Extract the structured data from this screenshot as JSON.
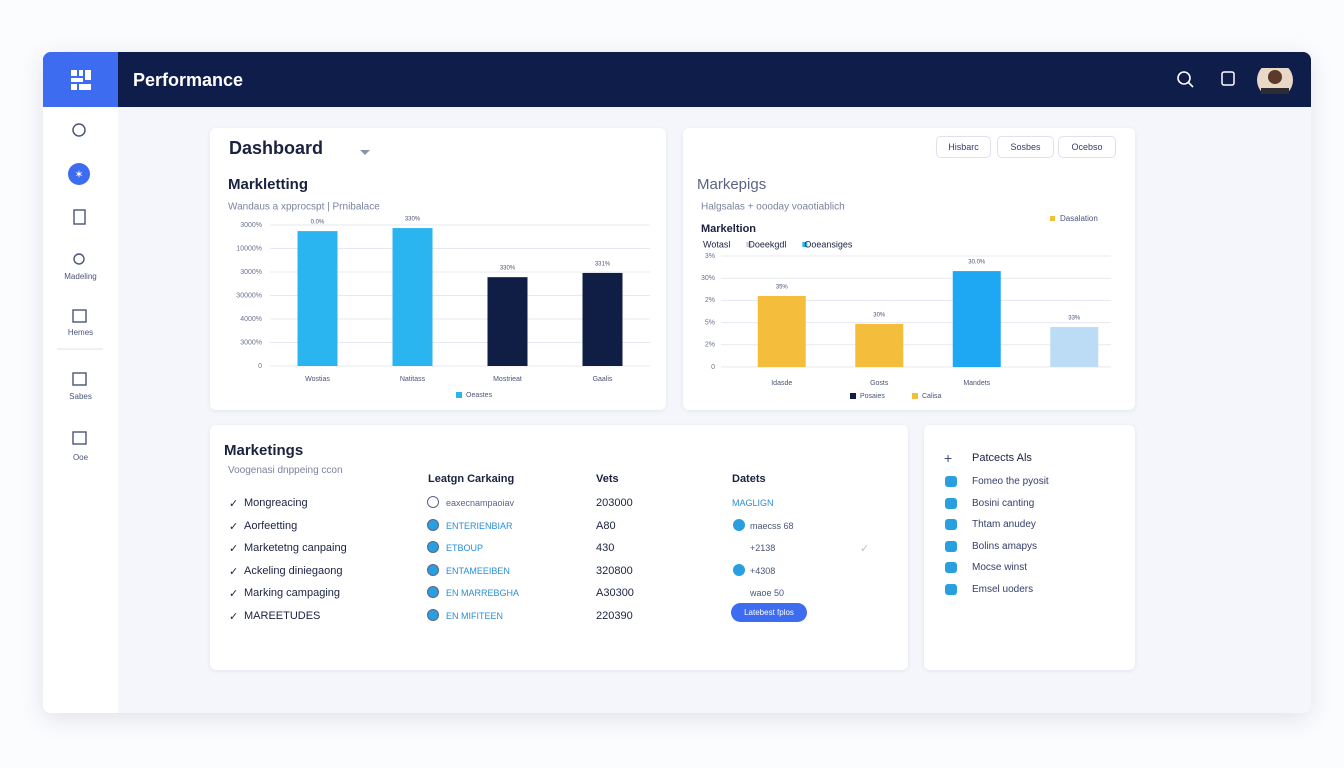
{
  "header": {
    "title": "Performance"
  },
  "sidebar": {
    "items": [
      "Madeling",
      "Hemes",
      "Sabes",
      "Ooe"
    ]
  },
  "dashboard": {
    "title": "Dashboard",
    "buttons": [
      "Hisbarc",
      "Sosbes",
      "Ocebso"
    ]
  },
  "chart_data": [
    {
      "type": "bar",
      "title": "Markletting",
      "subtitle": "Wandaus a xpprocspt | Prnibalace",
      "categories": [
        "Wostias",
        "Natitass",
        "Mostrieat",
        "Gaalis"
      ],
      "values": [
        5.74,
        5.87,
        3.78,
        3.96
      ],
      "bar_labels": [
        "0.0%",
        "330%",
        "330%",
        "331%"
      ],
      "colors": [
        "#2bb5f0",
        "#2bb5f0",
        "#101d45",
        "#101d45"
      ],
      "ylim": [
        0,
        6
      ],
      "yticks": [
        {
          "value": 0,
          "label": "0"
        },
        {
          "value": 1,
          "label": "3000%"
        },
        {
          "value": 2,
          "label": "4000%"
        },
        {
          "value": 3,
          "label": "30000%"
        },
        {
          "value": 4,
          "label": "3000%"
        },
        {
          "value": 5,
          "label": "10000%"
        },
        {
          "value": 6,
          "label": "3000%"
        }
      ],
      "grid": true,
      "legend": [
        {
          "name": "Oeastes",
          "color": "#2bb5f0"
        }
      ]
    },
    {
      "type": "bar",
      "title": "Markepigs",
      "subtitle": "Halgsalas + oooday voaotiablich",
      "inner_title": "Markeltion",
      "top_legend": [
        {
          "name": "Dasalation",
          "color": "#f5bd3c"
        }
      ],
      "sub_legend": [
        {
          "name": "Wotasl",
          "color": "#ffffff"
        },
        {
          "name": "Doeekgdl",
          "color": "#c8cdd8"
        },
        {
          "name": "Ooeansiges",
          "color": "#2bb5f0"
        }
      ],
      "categories": [
        "Idasde",
        "Gosts",
        "Mandets",
        null
      ],
      "values": [
        3.2,
        1.94,
        4.32,
        1.8
      ],
      "bar_labels": [
        "35%",
        "30%",
        "30.0%",
        "33%"
      ],
      "colors": [
        "#f5bd3c",
        "#f5bd3c",
        "#1ea7f2",
        "#bcdcf6"
      ],
      "ylim": [
        0,
        5
      ],
      "yticks": [
        {
          "value": 0,
          "label": "0"
        },
        {
          "value": 1,
          "label": "2%"
        },
        {
          "value": 2,
          "label": "5%"
        },
        {
          "value": 3,
          "label": "2%"
        },
        {
          "value": 4,
          "label": "30%"
        },
        {
          "value": 5,
          "label": "3%"
        }
      ],
      "grid": true,
      "legend": [
        {
          "name": "Posaies",
          "color": "#101d45"
        },
        {
          "name": "Calisa",
          "color": "#f5bd3c"
        }
      ]
    }
  ],
  "table": {
    "title": "Marketings",
    "subtitle": "Voogenasi dnppeing ccon",
    "columns": [
      "Leatgn Carkaing",
      "Vets",
      "Datets"
    ],
    "rows": [
      [
        "Mongreacing",
        "eaxecnampaoiav",
        "203000",
        "MAGLIGN"
      ],
      [
        "Aorfeetting",
        "ENTERIENBIAR",
        "A80",
        "maecss 68"
      ],
      [
        "Marketetng canpaing",
        "ETBOUP",
        "430",
        "+2138"
      ],
      [
        "Ackeling diniegaong",
        "ENTAMEEIBEN",
        "320800",
        "+4308"
      ],
      [
        "Marking campaging",
        "EN MARREBGHA",
        "A30300",
        "waoe 50"
      ],
      [
        "MAREETUDES",
        "EN MIFITEEN",
        "220390",
        "Latebest fplos"
      ]
    ]
  },
  "panel": {
    "title": "Patcects Als",
    "items": [
      "Fomeo the pyosit",
      "Bosini canting",
      "Thtam anudey",
      "Bolins amapys",
      "Mocse winst",
      "Emsel uoders"
    ]
  }
}
